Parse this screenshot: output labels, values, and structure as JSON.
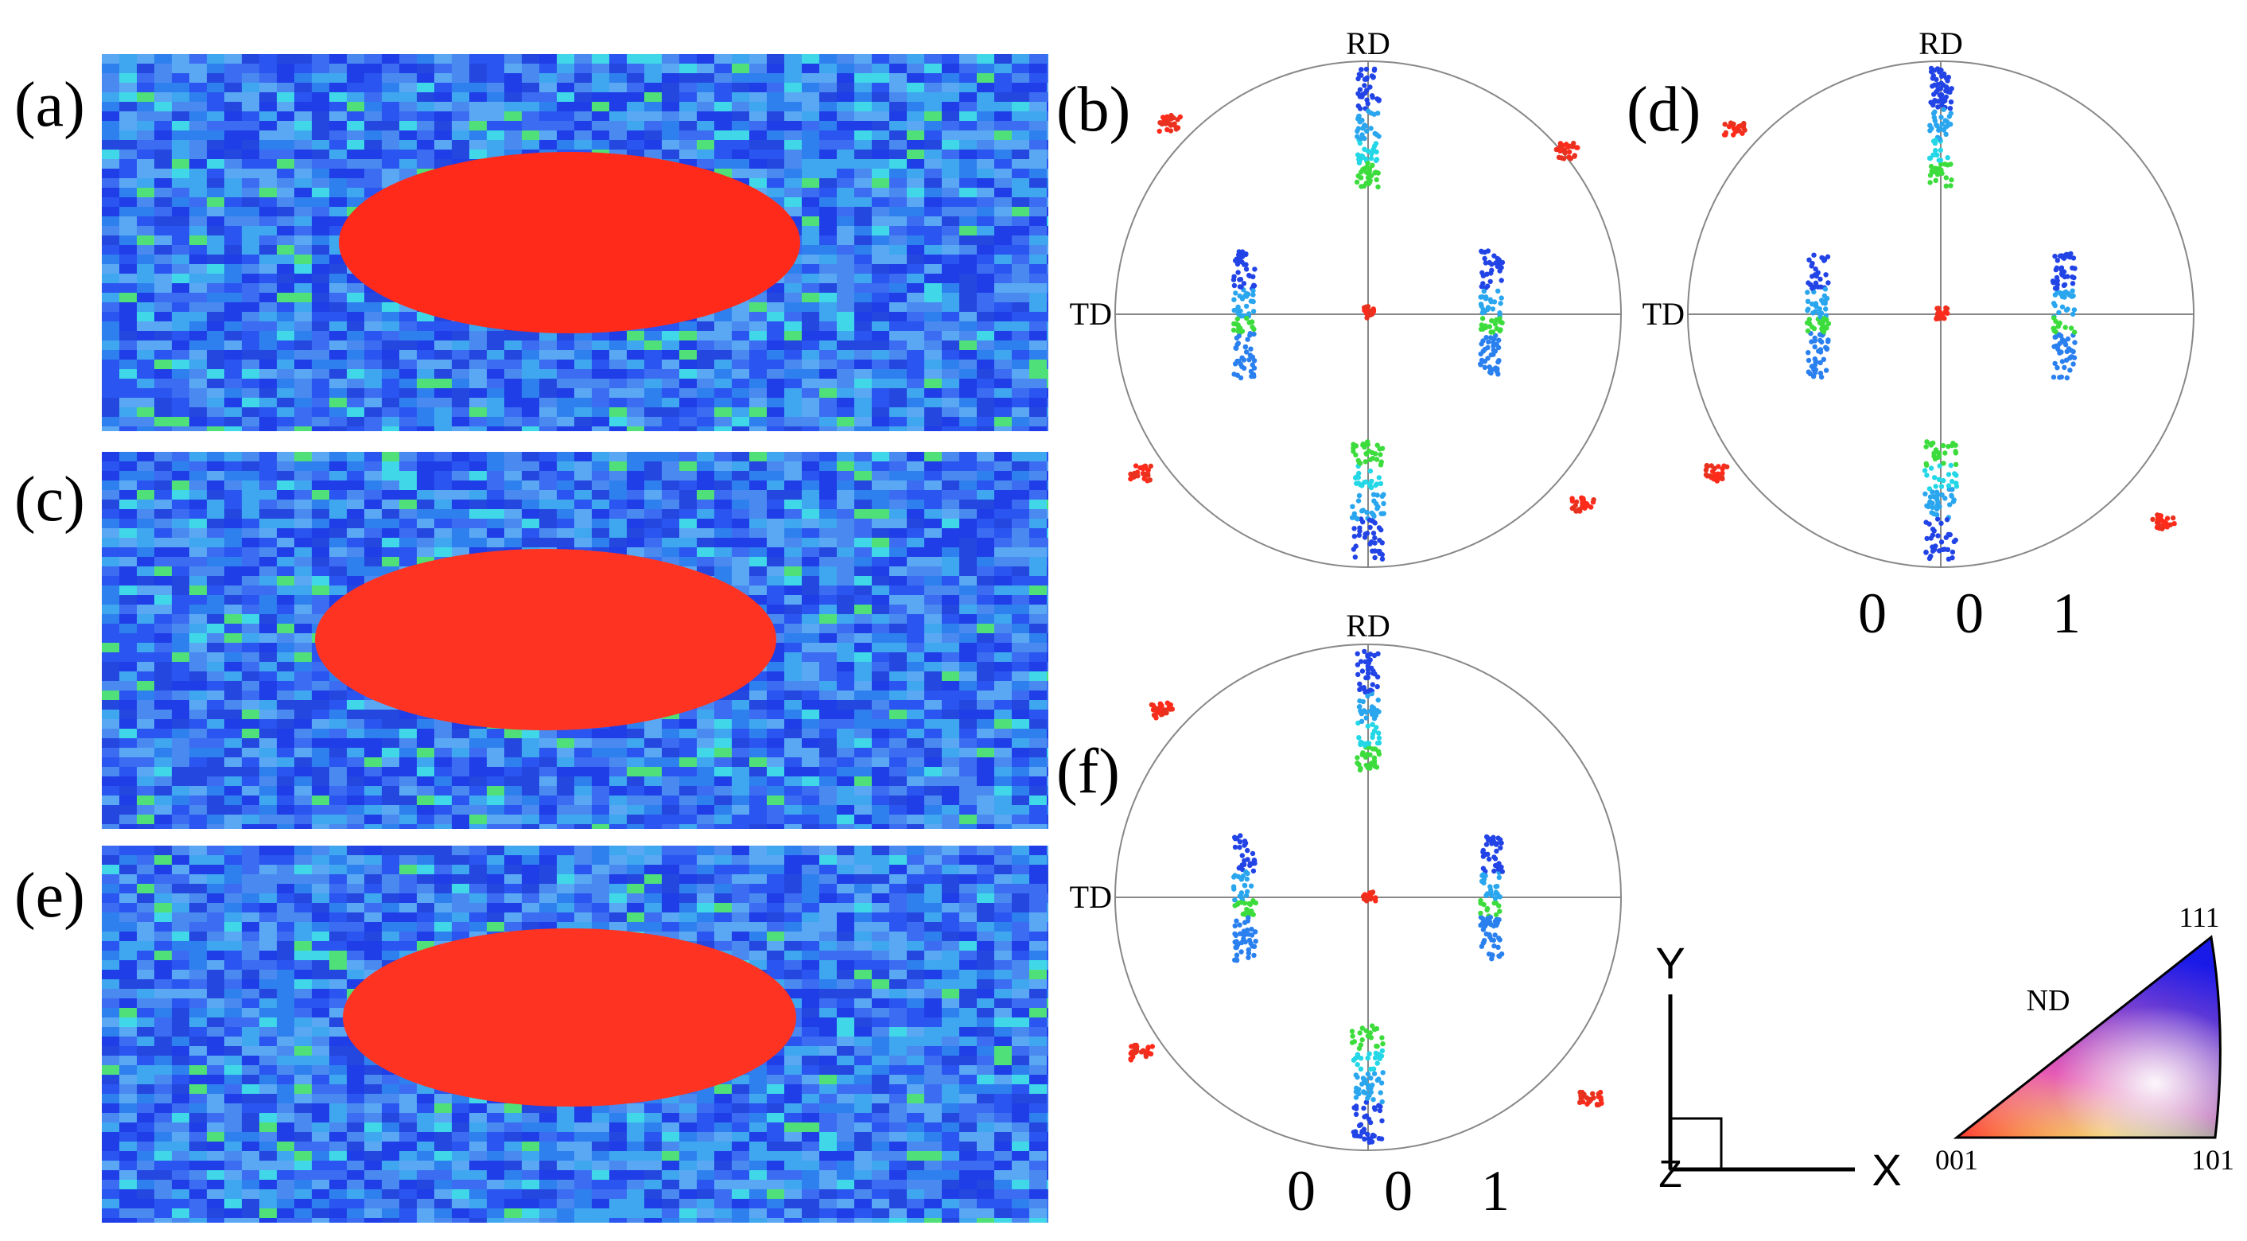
{
  "panels": {
    "a": {
      "label": "(a)"
    },
    "b": {
      "label": "(b)",
      "rd": "RD",
      "td": "TD"
    },
    "c": {
      "label": "(c)"
    },
    "d": {
      "label": "(d)",
      "rd": "RD",
      "td": "TD",
      "miller": "0 0 1"
    },
    "e": {
      "label": "(e)"
    },
    "f": {
      "label": "(f)",
      "rd": "RD",
      "td": "TD",
      "miller": "0 0 1"
    }
  },
  "axes": {
    "y": "Y",
    "x": "X",
    "z": "Z"
  },
  "ipf": {
    "nd": "ND",
    "c111": "111",
    "c001": "001",
    "c101": "101"
  },
  "colors": {
    "matrix": "#2f6bf2",
    "grain": "#ff2a1a",
    "green": "#3ddc3d",
    "cyan": "#23d7e6"
  }
}
